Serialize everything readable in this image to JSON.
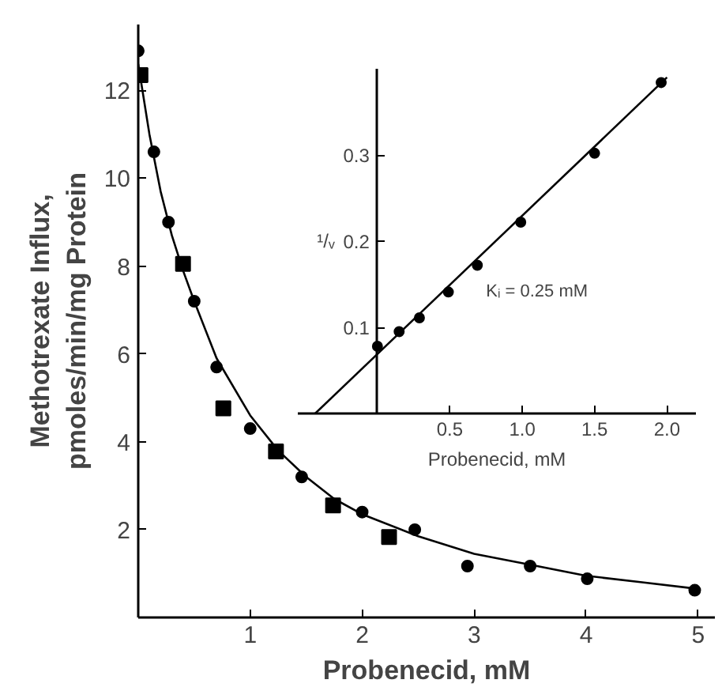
{
  "chart_data": [
    {
      "type": "scatter",
      "xlabel": "Probenecid, mM",
      "ylabel": "Methotrexate Influx,\npmoles/min/mg Protein",
      "xlim": [
        0,
        5.15
      ],
      "ylim": [
        0,
        13.5
      ],
      "xticks": [
        1,
        2,
        3,
        4,
        5
      ],
      "yticks": [
        2,
        4,
        6,
        8,
        10,
        12
      ],
      "grid": false,
      "series": [
        {
          "type": "scatter",
          "marker": "circle",
          "color": "#000000",
          "x": [
            0,
            0.14,
            0.27,
            0.5,
            0.7,
            1.0,
            1.46,
            2.0,
            2.47,
            2.94,
            3.5,
            4.01,
            4.97
          ],
          "values": [
            12.9,
            10.6,
            9.0,
            7.2,
            5.7,
            4.3,
            3.2,
            2.4,
            2.0,
            1.17,
            1.17,
            0.88,
            0.62
          ]
        },
        {
          "type": "scatter",
          "marker": "square",
          "color": "#000000",
          "x": [
            0.02,
            0.4,
            0.76,
            1.23,
            1.74,
            2.24
          ],
          "values": [
            12.35,
            8.05,
            4.76,
            3.78,
            2.55,
            1.83
          ]
        },
        {
          "type": "line",
          "marker": "none",
          "color": "#000000",
          "x": [
            0,
            0.1,
            0.2,
            0.3,
            0.4,
            0.5,
            0.7,
            1.0,
            1.25,
            1.5,
            1.75,
            2.0,
            2.5,
            3.0,
            3.5,
            4.0,
            4.5,
            5.0
          ],
          "values": [
            12.6,
            11.0,
            9.7,
            8.7,
            7.9,
            7.2,
            5.9,
            4.6,
            3.8,
            3.2,
            2.7,
            2.35,
            1.85,
            1.45,
            1.2,
            0.95,
            0.8,
            0.65
          ]
        }
      ]
    },
    {
      "type": "scatter",
      "xlabel": "Probenecid, mM",
      "ylabel": "¹/ᵥ",
      "xlim": [
        -0.55,
        2.2
      ],
      "ylim": [
        0,
        0.4
      ],
      "xticks": [
        0.5,
        {
          "value": 1.0,
          "label": "1.0"
        },
        1.5,
        {
          "value": 2.0,
          "label": "2.0"
        }
      ],
      "yticks": [
        0.1,
        0.2,
        0.3
      ],
      "grid": false,
      "annotations": [
        "Kᵢ = 0.25 mM"
      ],
      "series": [
        {
          "type": "scatter",
          "marker": "circle",
          "color": "#000000",
          "x": [
            0,
            0.15,
            0.29,
            0.49,
            0.69,
            0.99,
            1.5,
            1.96
          ],
          "values": [
            0.078,
            0.095,
            0.111,
            0.141,
            0.172,
            0.222,
            0.302,
            0.384
          ]
        },
        {
          "type": "line",
          "marker": "none",
          "color": "#000000",
          "x": [
            -0.43,
            2.0
          ],
          "values": [
            0,
            0.39
          ]
        }
      ]
    }
  ]
}
